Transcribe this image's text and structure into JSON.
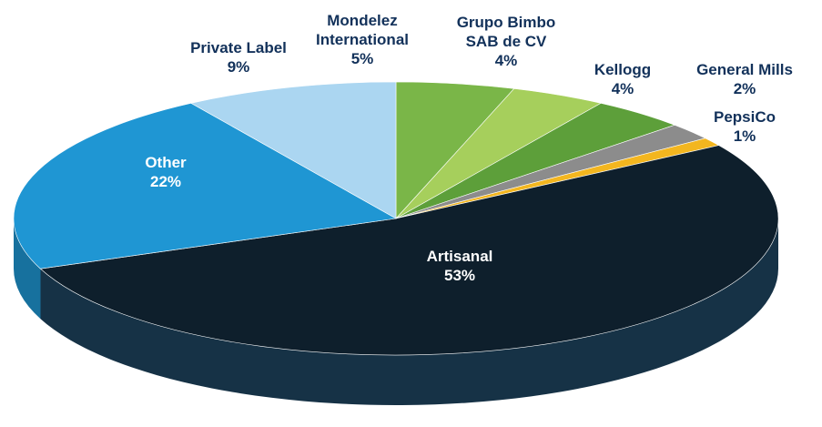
{
  "chart_data": {
    "type": "pie",
    "categories": [
      "Mondelez International",
      "Grupo Bimbo SAB de CV",
      "Kellogg",
      "General Mills",
      "PepsiCo",
      "Artisanal",
      "Other",
      "Private Label"
    ],
    "values": [
      5,
      4,
      4,
      2,
      1,
      53,
      22,
      9
    ],
    "value_labels": [
      "5%",
      "4%",
      "4%",
      "2%",
      "1%",
      "53%",
      "22%",
      "9%"
    ],
    "colors": [
      "#7ab648",
      "#a6cf5c",
      "#5d9f3a",
      "#8c8c8c",
      "#f3b61f",
      "#0e1f2c",
      "#1f96d3",
      "#abd6f1"
    ]
  }
}
